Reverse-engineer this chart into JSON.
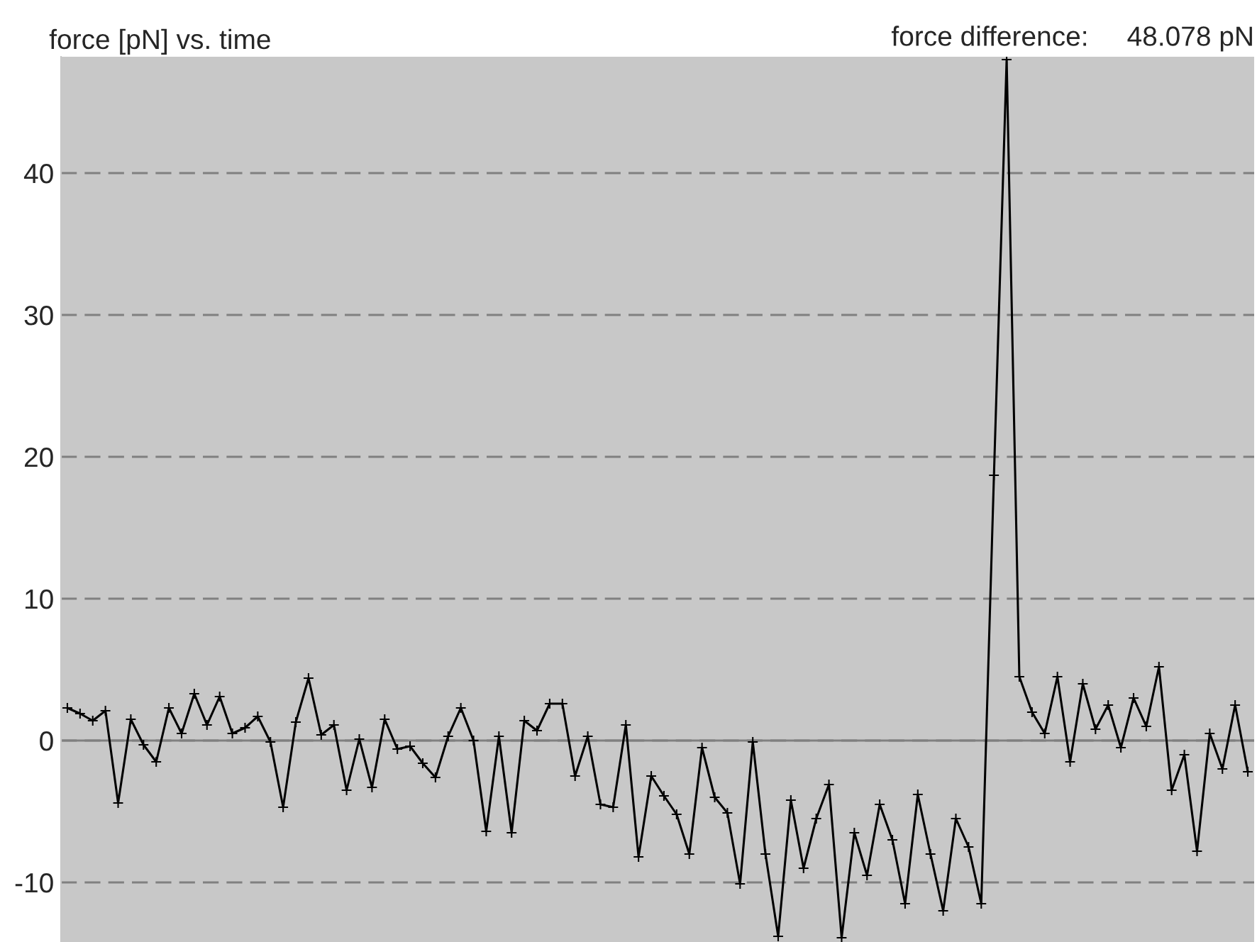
{
  "chart_data": {
    "type": "line",
    "title": "force [pN] vs. time",
    "annotations": [
      "force difference:     48.078 pN"
    ],
    "categories": [
      null,
      null,
      null,
      null,
      null,
      null,
      null,
      null,
      null,
      null,
      null,
      null,
      null,
      null,
      null,
      null,
      null,
      null,
      null,
      null,
      null,
      null,
      null,
      null,
      null,
      null,
      null,
      null,
      null,
      null,
      null,
      null,
      null,
      null,
      null,
      null,
      null,
      null,
      null,
      null,
      null,
      null,
      null,
      null,
      null,
      null,
      null,
      null,
      null,
      null,
      null,
      null,
      null,
      null,
      null,
      null,
      null,
      null,
      null,
      null,
      null,
      null,
      null,
      null,
      null,
      null,
      null,
      null,
      null,
      null,
      null,
      null,
      null,
      null,
      null,
      null,
      null,
      null,
      null,
      null,
      null,
      null,
      null,
      null,
      null,
      null,
      null,
      null,
      null,
      null,
      null,
      null,
      null,
      null
    ],
    "series": [
      {
        "color": "#000000",
        "values": [
          2.3,
          1.9,
          1.4,
          2.1,
          -4.4,
          1.5,
          -0.3,
          -1.5,
          2.3,
          0.5,
          3.3,
          1.1,
          3.1,
          0.5,
          0.9,
          1.7,
          -0.1,
          -4.7,
          1.3,
          4.4,
          0.4,
          1.1,
          -3.5,
          0.1,
          -3.3,
          1.5,
          -0.6,
          -0.4,
          -1.6,
          -2.6,
          0.3,
          2.3,
          0.0,
          -6.4,
          0.3,
          -6.5,
          1.4,
          0.7,
          2.6,
          2.6,
          -2.5,
          0.3,
          -4.5,
          -4.7,
          1.1,
          -8.2,
          -2.5,
          -3.9,
          -5.2,
          -8.0,
          -0.5,
          -4.0,
          -5.1,
          -10.1,
          -0.1,
          -8,
          -13.8,
          -4.2,
          -9,
          -5.5,
          -3.1,
          -13.9,
          -6.5,
          -9.5,
          -4.5,
          -7,
          -11.5,
          -3.8,
          -8,
          -12,
          -5.5,
          -7.5,
          -11.5,
          18.7,
          48,
          4.5,
          2.0,
          0.5,
          4.5,
          -1.5,
          4,
          0.8,
          2.5,
          -0.5,
          3,
          1,
          5.2,
          -3.5,
          -1,
          -7.8,
          0.5,
          -2,
          2.5,
          -2.2
        ]
      }
    ],
    "ylim": [
      -14.2,
      48.2
    ],
    "yticks": [
      -10,
      0,
      10,
      20,
      30,
      40
    ],
    "ref_lines": [
      {
        "axis": "y",
        "value": 0,
        "color": "#808080"
      }
    ],
    "grid": "y",
    "tick_labels": "y",
    "marker": "cross",
    "line_style": "solid"
  }
}
